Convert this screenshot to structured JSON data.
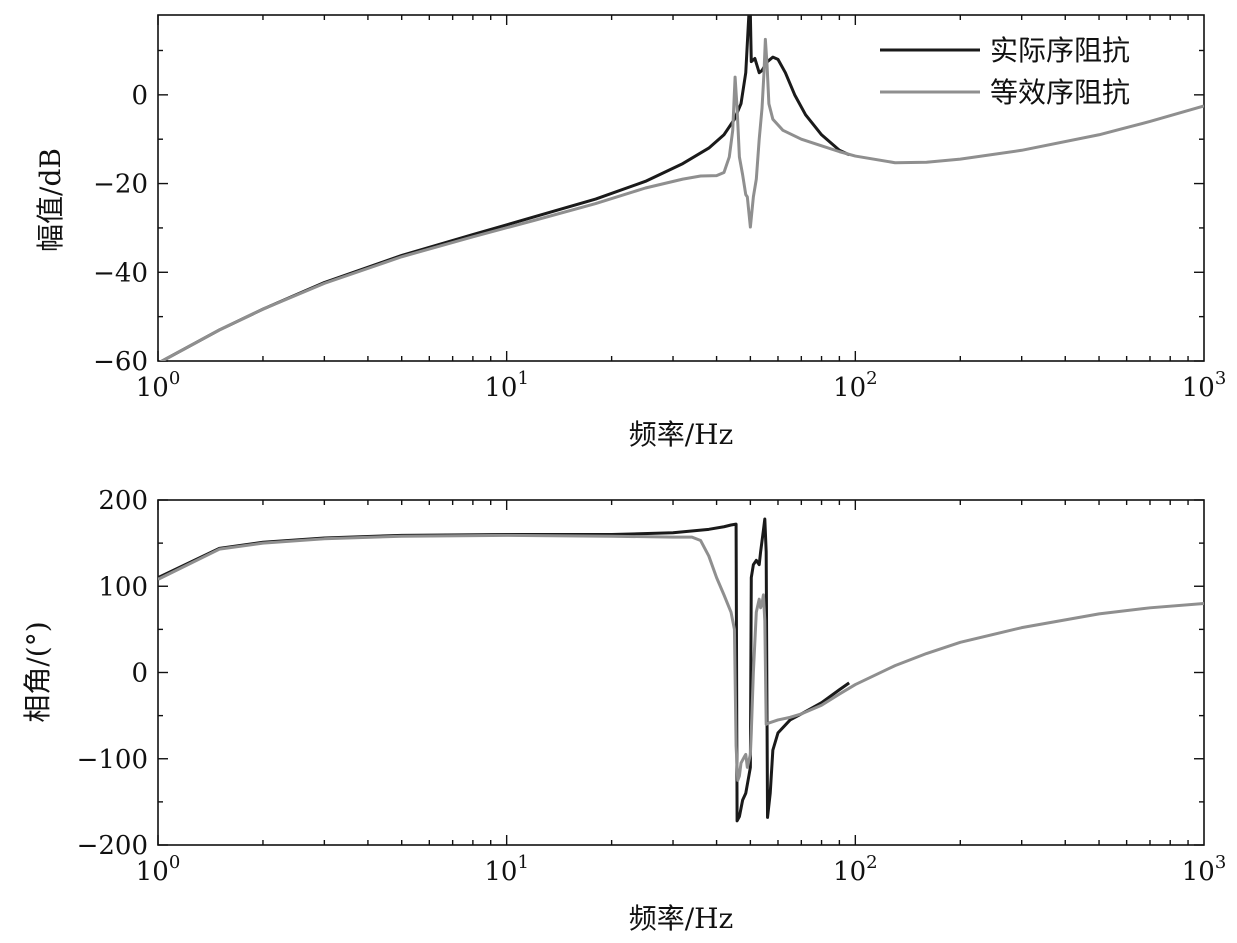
{
  "chart_data": [
    {
      "type": "line",
      "ylabel": "幅值/dB",
      "xlabel": "频率/Hz",
      "xscale": "log",
      "xlim": [
        1,
        1000
      ],
      "ylim": [
        -60,
        18
      ],
      "yticks": [
        0,
        -20,
        -40,
        -60
      ],
      "ytick_labels": [
        "0",
        "−20",
        "−40",
        "−60"
      ],
      "xticks": [
        {
          "base": "10",
          "exp": "0"
        },
        {
          "base": "10",
          "exp": "1"
        },
        {
          "base": "10",
          "exp": "2"
        },
        {
          "base": "10",
          "exp": "3"
        }
      ],
      "grid": false,
      "legend": "top-right",
      "series": [
        {
          "name": "实际序阻抗",
          "color": "#1a1a1a",
          "points": [
            [
              1,
              -60.5
            ],
            [
              1.5,
              -53
            ],
            [
              2,
              -48.3
            ],
            [
              3,
              -42.3
            ],
            [
              5,
              -36.2
            ],
            [
              8,
              -31.5
            ],
            [
              12,
              -27.5
            ],
            [
              18,
              -23.5
            ],
            [
              25,
              -19.5
            ],
            [
              32,
              -15.5
            ],
            [
              38,
              -12
            ],
            [
              42,
              -9
            ],
            [
              45,
              -5.5
            ],
            [
              47,
              -2
            ],
            [
              48.5,
              5
            ],
            [
              49.5,
              18
            ],
            [
              50,
              18
            ],
            [
              50.3,
              7.5
            ],
            [
              51.5,
              8.2
            ],
            [
              52.3,
              6.5
            ],
            [
              53,
              5
            ],
            [
              54,
              5.5
            ],
            [
              56,
              7.5
            ],
            [
              58,
              8.5
            ],
            [
              60,
              8
            ],
            [
              63,
              5
            ],
            [
              67,
              0
            ],
            [
              72,
              -4.5
            ],
            [
              80,
              -9
            ],
            [
              90,
              -12.5
            ],
            [
              96,
              -13.5
            ]
          ]
        },
        {
          "name": "等效序阻抗",
          "color": "#8f8f8f",
          "points": [
            [
              1,
              -60.5
            ],
            [
              1.5,
              -53
            ],
            [
              2,
              -48.3
            ],
            [
              3,
              -42.5
            ],
            [
              5,
              -36.5
            ],
            [
              8,
              -32
            ],
            [
              12,
              -28.3
            ],
            [
              18,
              -24.5
            ],
            [
              25,
              -21
            ],
            [
              32,
              -19
            ],
            [
              36,
              -18.3
            ],
            [
              40,
              -18.2
            ],
            [
              42,
              -17.5
            ],
            [
              43.5,
              -14
            ],
            [
              44.5,
              -8
            ],
            [
              45.2,
              4
            ],
            [
              45.8,
              -3
            ],
            [
              46.5,
              -14
            ],
            [
              47.5,
              -18
            ],
            [
              48.5,
              -22.5
            ],
            [
              49,
              -23
            ],
            [
              50,
              -29.8
            ],
            [
              51,
              -23
            ],
            [
              52,
              -19
            ],
            [
              53,
              -10
            ],
            [
              54,
              -3
            ],
            [
              54.7,
              5
            ],
            [
              55.2,
              12.5
            ],
            [
              55.8,
              7
            ],
            [
              56.5,
              -2
            ],
            [
              58,
              -5.5
            ],
            [
              62,
              -8
            ],
            [
              70,
              -10
            ],
            [
              80,
              -11.5
            ],
            [
              90,
              -12.8
            ],
            [
              100,
              -13.8
            ],
            [
              130,
              -15.3
            ],
            [
              160,
              -15.2
            ],
            [
              200,
              -14.5
            ],
            [
              300,
              -12.5
            ],
            [
              500,
              -9
            ],
            [
              700,
              -6
            ],
            [
              1000,
              -2.5
            ]
          ]
        }
      ]
    },
    {
      "type": "line",
      "ylabel": "相角/(°)",
      "xlabel": "频率/Hz",
      "xscale": "log",
      "xlim": [
        1,
        1000
      ],
      "ylim": [
        -200,
        200
      ],
      "yticks": [
        200,
        100,
        0,
        -100,
        -200
      ],
      "ytick_labels": [
        "200",
        "100",
        "0",
        "−100",
        "−200"
      ],
      "xticks": [
        {
          "base": "10",
          "exp": "0"
        },
        {
          "base": "10",
          "exp": "1"
        },
        {
          "base": "10",
          "exp": "2"
        },
        {
          "base": "10",
          "exp": "3"
        }
      ],
      "grid": false,
      "legend": "none",
      "series": [
        {
          "name": "实际序阻抗",
          "color": "#1a1a1a",
          "points": [
            [
              1,
              110
            ],
            [
              1.5,
              144
            ],
            [
              2,
              151
            ],
            [
              3,
              156
            ],
            [
              5,
              159
            ],
            [
              10,
              160
            ],
            [
              20,
              160
            ],
            [
              30,
              162
            ],
            [
              38,
              166
            ],
            [
              42,
              169
            ],
            [
              44,
              171
            ],
            [
              45.5,
              172
            ],
            [
              45.8,
              -172
            ],
            [
              46.5,
              -167
            ],
            [
              47.5,
              -148
            ],
            [
              48.5,
              -140
            ],
            [
              49.5,
              -120
            ],
            [
              50,
              -110
            ],
            [
              50.3,
              110
            ],
            [
              51,
              125
            ],
            [
              52,
              130
            ],
            [
              53,
              125
            ],
            [
              53.5,
              140
            ],
            [
              54.5,
              165
            ],
            [
              55,
              178
            ],
            [
              55.5,
              140
            ],
            [
              56,
              -168
            ],
            [
              57,
              -140
            ],
            [
              58,
              -90
            ],
            [
              60,
              -70
            ],
            [
              65,
              -55
            ],
            [
              70,
              -48
            ],
            [
              80,
              -35
            ],
            [
              90,
              -20
            ],
            [
              96,
              -12
            ]
          ]
        },
        {
          "name": "等效序阻抗",
          "color": "#8f8f8f",
          "points": [
            [
              1,
              108
            ],
            [
              1.5,
              143
            ],
            [
              2,
              150
            ],
            [
              3,
              155
            ],
            [
              5,
              158
            ],
            [
              10,
              159
            ],
            [
              20,
              158
            ],
            [
              30,
              157
            ],
            [
              34,
              157
            ],
            [
              36,
              153
            ],
            [
              38,
              135
            ],
            [
              40,
              110
            ],
            [
              42,
              90
            ],
            [
              44,
              70
            ],
            [
              45,
              50
            ],
            [
              45.5,
              -85
            ],
            [
              46,
              -125
            ],
            [
              46.5,
              -120
            ],
            [
              47,
              -105
            ],
            [
              48,
              -98
            ],
            [
              48.5,
              -95
            ],
            [
              49,
              -110
            ],
            [
              50,
              -95
            ],
            [
              50.3,
              -70
            ],
            [
              51,
              0
            ],
            [
              52,
              70
            ],
            [
              53,
              85
            ],
            [
              53.5,
              75
            ],
            [
              54,
              80
            ],
            [
              54.5,
              90
            ],
            [
              55,
              60
            ],
            [
              55.5,
              -60
            ],
            [
              57,
              -58
            ],
            [
              60,
              -55
            ],
            [
              65,
              -52
            ],
            [
              70,
              -48
            ],
            [
              80,
              -38
            ],
            [
              90,
              -25
            ],
            [
              100,
              -14
            ],
            [
              130,
              8
            ],
            [
              160,
              22
            ],
            [
              200,
              35
            ],
            [
              300,
              52
            ],
            [
              500,
              68
            ],
            [
              700,
              75
            ],
            [
              1000,
              80
            ]
          ]
        }
      ]
    }
  ]
}
